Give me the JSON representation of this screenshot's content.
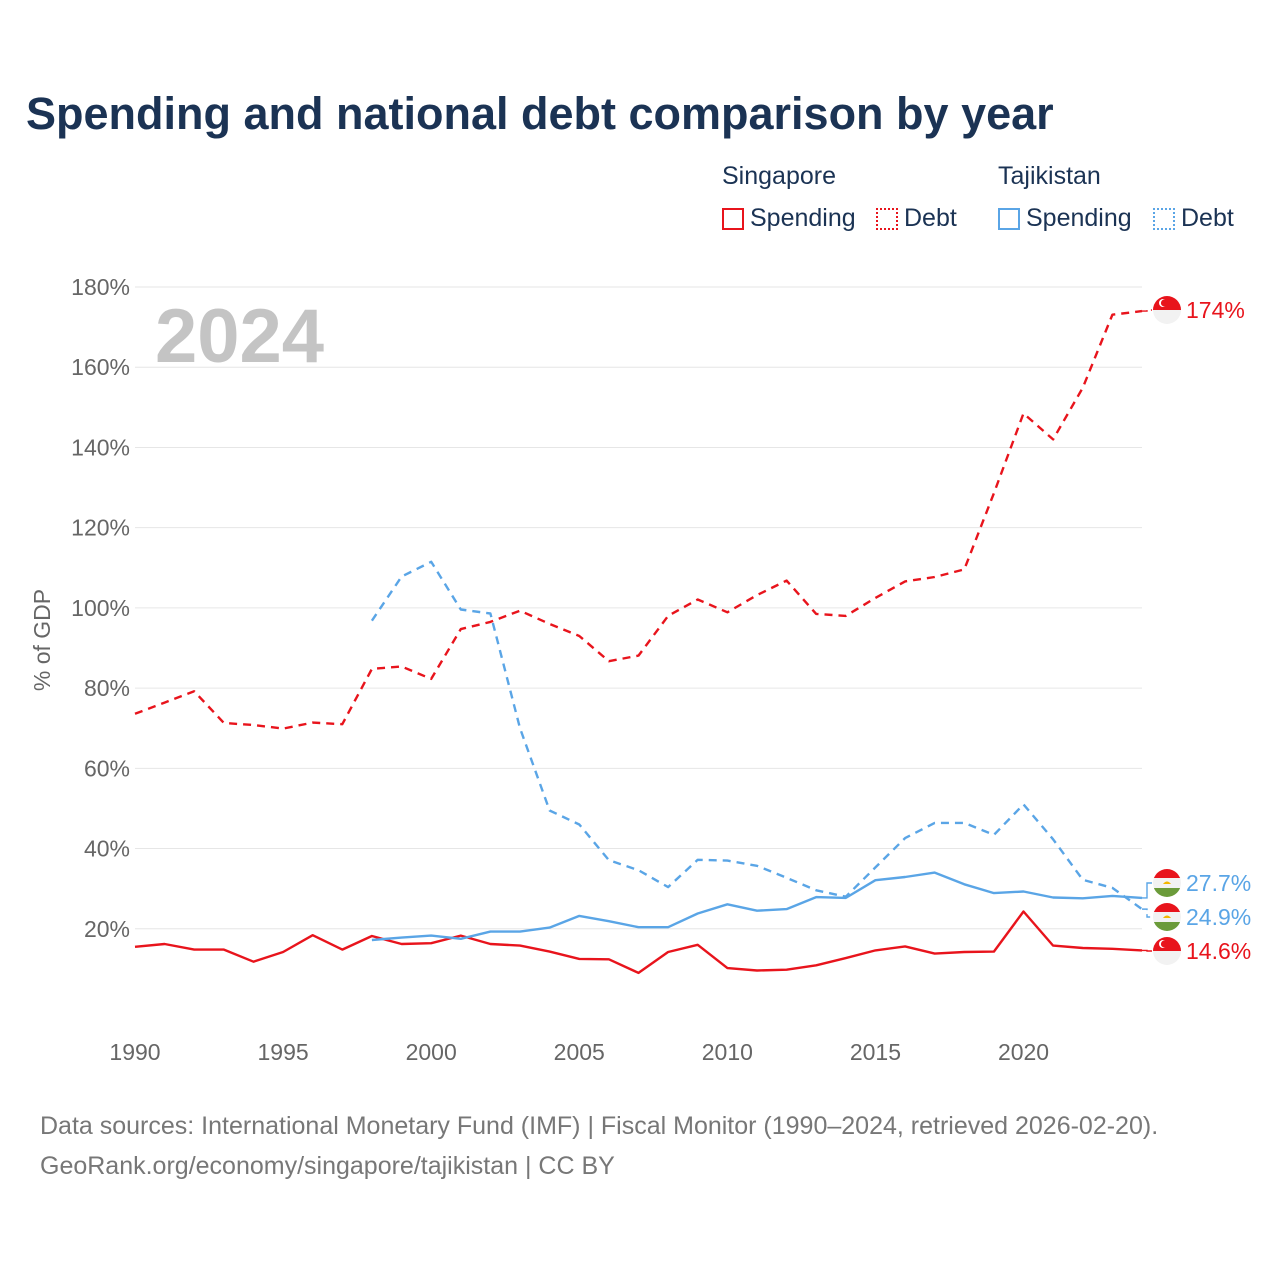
{
  "title": "Spending and national debt comparison by year",
  "legend": {
    "groups": [
      {
        "country": "Singapore",
        "color": "#e8141c",
        "items": [
          "Spending",
          "Debt"
        ]
      },
      {
        "country": "Tajikistan",
        "color": "#5aa5e6",
        "items": [
          "Spending",
          "Debt"
        ]
      }
    ]
  },
  "year_watermark": "2024",
  "source": {
    "line1": "Data sources: International Monetary Fund (IMF) | Fiscal Monitor (1990–2024, retrieved 2026-02-20).",
    "line2": "GeoRank.org/economy/singapore/tajikistan | CC BY"
  },
  "chart_data": {
    "type": "line",
    "title": "Spending and national debt comparison by year",
    "xlabel": "",
    "ylabel": "% of GDP",
    "xlim": [
      1990,
      2024
    ],
    "ylim": [
      0,
      180
    ],
    "x_ticks": [
      1990,
      1995,
      2000,
      2005,
      2010,
      2015,
      2020
    ],
    "x_tick_labels": [
      "1990",
      "1995",
      "2000",
      "2005",
      "2010",
      "2015",
      "2020"
    ],
    "y_ticks": [
      20,
      40,
      60,
      80,
      100,
      120,
      140,
      160,
      180
    ],
    "y_tick_labels": [
      "20%",
      "40%",
      "60%",
      "80%",
      "100%",
      "120%",
      "140%",
      "160%",
      "180%"
    ],
    "grid": true,
    "series": [
      {
        "name": "Singapore Spending",
        "color": "#e8141c",
        "dash": "solid",
        "x": [
          1990,
          1991,
          1992,
          1993,
          1994,
          1995,
          1996,
          1997,
          1998,
          1999,
          2000,
          2001,
          2002,
          2003,
          2004,
          2005,
          2006,
          2007,
          2008,
          2009,
          2010,
          2011,
          2012,
          2013,
          2014,
          2015,
          2016,
          2017,
          2018,
          2019,
          2020,
          2021,
          2022,
          2023,
          2024
        ],
        "values": [
          15.5,
          16.2,
          14.8,
          14.8,
          11.8,
          14.2,
          18.4,
          14.8,
          18.2,
          16.2,
          16.4,
          18.3,
          16.2,
          15.8,
          14.3,
          12.5,
          12.4,
          9.0,
          14.2,
          16.0,
          10.2,
          9.6,
          9.8,
          10.9,
          12.7,
          14.6,
          15.6,
          13.8,
          14.2,
          14.3,
          24.3,
          15.8,
          15.2,
          15.0,
          14.6
        ],
        "end_label": "14.6%"
      },
      {
        "name": "Singapore Debt",
        "color": "#e8141c",
        "dash": "dashed",
        "x": [
          1990,
          1991,
          1992,
          1993,
          1994,
          1995,
          1996,
          1997,
          1998,
          1999,
          2000,
          2001,
          2002,
          2003,
          2004,
          2005,
          2006,
          2007,
          2008,
          2009,
          2010,
          2011,
          2012,
          2013,
          2014,
          2015,
          2016,
          2017,
          2018,
          2019,
          2020,
          2021,
          2022,
          2023,
          2024
        ],
        "values": [
          73.6,
          76.4,
          79.2,
          71.3,
          70.8,
          69.9,
          71.4,
          71.0,
          84.8,
          85.4,
          82.3,
          94.7,
          96.5,
          99.3,
          96.0,
          93.0,
          86.7,
          88.1,
          98.0,
          102.1,
          98.9,
          103.2,
          106.8,
          98.5,
          98.0,
          102.5,
          106.6,
          107.7,
          109.6,
          128.6,
          148.5,
          142.0,
          154.9,
          173.1,
          174.0
        ],
        "end_label": "174%"
      },
      {
        "name": "Tajikistan Spending",
        "color": "#5aa5e6",
        "dash": "solid",
        "x": [
          1998,
          1999,
          2000,
          2001,
          2002,
          2003,
          2004,
          2005,
          2006,
          2007,
          2008,
          2009,
          2010,
          2011,
          2012,
          2013,
          2014,
          2015,
          2016,
          2017,
          2018,
          2019,
          2020,
          2021,
          2022,
          2023,
          2024
        ],
        "values": [
          17.2,
          17.8,
          18.3,
          17.5,
          19.3,
          19.3,
          20.3,
          23.2,
          21.9,
          20.4,
          20.4,
          23.8,
          26.1,
          24.5,
          24.9,
          27.9,
          27.7,
          32.1,
          32.9,
          34.0,
          31.1,
          28.9,
          29.3,
          27.8,
          27.6,
          28.2,
          27.7
        ],
        "end_label": "27.7%"
      },
      {
        "name": "Tajikistan Debt",
        "color": "#5aa5e6",
        "dash": "dashed",
        "x": [
          1998,
          1999,
          2000,
          2001,
          2002,
          2003,
          2004,
          2005,
          2006,
          2007,
          2008,
          2009,
          2010,
          2011,
          2012,
          2013,
          2014,
          2015,
          2016,
          2017,
          2018,
          2019,
          2020,
          2021,
          2022,
          2023,
          2024
        ],
        "values": [
          96.8,
          107.8,
          111.5,
          99.6,
          98.6,
          70.0,
          49.5,
          46.0,
          37.1,
          34.6,
          30.4,
          37.2,
          37.0,
          35.7,
          32.7,
          29.6,
          28.0,
          35.3,
          42.6,
          46.4,
          46.4,
          43.4,
          51.0,
          42.3,
          32.2,
          30.2,
          24.9
        ],
        "end_label": "24.9%"
      }
    ]
  }
}
